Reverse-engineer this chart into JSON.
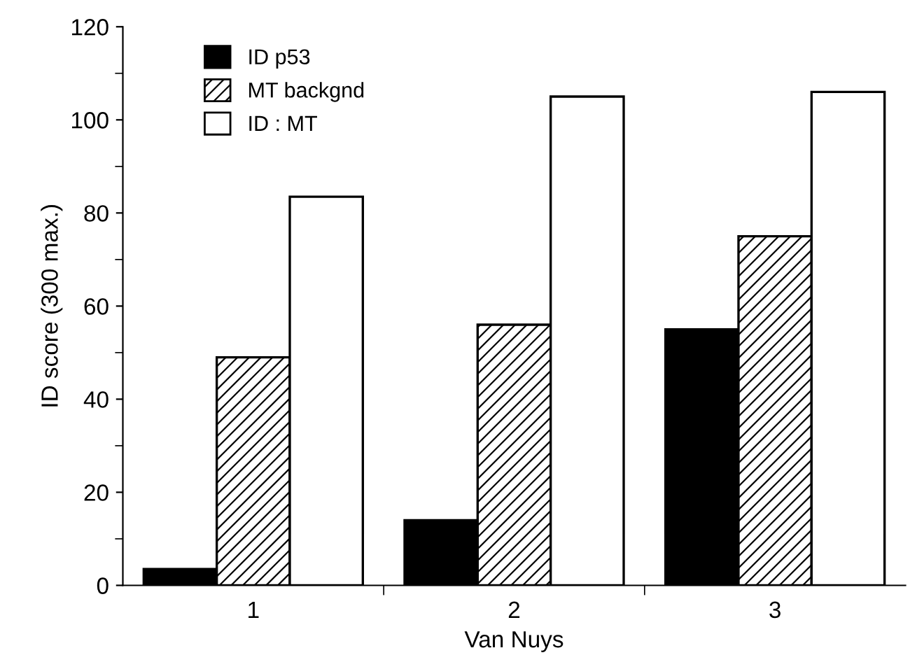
{
  "chart_data": {
    "type": "bar",
    "xlabel": "Van Nuys",
    "ylabel": "ID score (300 max.)",
    "categories": [
      "1",
      "2",
      "3"
    ],
    "series": [
      {
        "name": "ID p53",
        "color": "#000000",
        "values": [
          3.5,
          14,
          55
        ]
      },
      {
        "name": "MT backgnd",
        "color": "#000000",
        "values": [
          49,
          56,
          75
        ]
      },
      {
        "name": "ID : MT",
        "color": "#ffffff",
        "values": [
          83.5,
          105,
          106
        ]
      }
    ],
    "ylim": [
      0,
      120
    ],
    "yticks": [
      0,
      20,
      40,
      60,
      80,
      100,
      120
    ],
    "grid": false,
    "legend": "top left"
  }
}
